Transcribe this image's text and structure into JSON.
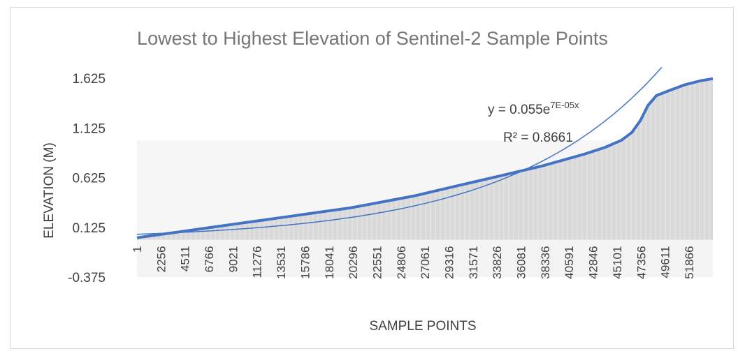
{
  "chart_data": {
    "type": "area",
    "title": "Lowest to Highest Elevation of Sentinel-2 Sample Points",
    "xlabel": "SAMPLE POINTS",
    "ylabel": "ELEVATION (M)",
    "ylim": [
      -0.375,
      1.625
    ],
    "yticks": [
      "1.625",
      "1.125",
      "0.625",
      "0.125",
      "-0.375"
    ],
    "ytick_values": [
      1.625,
      1.125,
      0.625,
      0.125,
      -0.375
    ],
    "xlim": [
      1,
      54100
    ],
    "xticks": [
      "1",
      "2256",
      "4511",
      "6766",
      "9021",
      "11276",
      "13531",
      "15786",
      "18041",
      "20296",
      "22551",
      "24806",
      "27061",
      "29316",
      "31571",
      "33826",
      "36081",
      "38336",
      "40591",
      "42846",
      "45101",
      "47356",
      "49611",
      "51866"
    ],
    "xtick_values": [
      1,
      2256,
      4511,
      6766,
      9021,
      11276,
      13531,
      15786,
      18041,
      20296,
      22551,
      24806,
      27061,
      29316,
      31571,
      33826,
      36081,
      38336,
      40591,
      42846,
      45101,
      47356,
      49611,
      51866
    ],
    "grid": false,
    "series": [
      {
        "x": [
          1,
          2000,
          4000,
          6000,
          8000,
          10000,
          12000,
          14000,
          16000,
          18000,
          20000,
          22000,
          24000,
          26000,
          28000,
          30000,
          32000,
          34000,
          36000,
          38000,
          40000,
          42000,
          44000,
          45500,
          46500,
          47300,
          48000,
          48800,
          50000,
          51500,
          53000,
          54100
        ],
        "y": [
          0.02,
          0.05,
          0.08,
          0.11,
          0.14,
          0.17,
          0.2,
          0.23,
          0.26,
          0.29,
          0.32,
          0.36,
          0.4,
          0.44,
          0.49,
          0.54,
          0.59,
          0.64,
          0.69,
          0.74,
          0.8,
          0.86,
          0.93,
          1.0,
          1.08,
          1.2,
          1.35,
          1.45,
          1.5,
          1.56,
          1.6,
          1.62
        ]
      }
    ],
    "trendline": {
      "type": "exponential",
      "a": 0.055,
      "b": 7e-05,
      "x_end": 49300,
      "equation_prefix": "y = 0.055e",
      "equation_exponent": "7E-05x",
      "r_squared_label": "R² = 0.8661"
    },
    "colors": {
      "area_fill": "#d9d9d9",
      "area_line": "#4472c4",
      "trendline": "#4472c4",
      "title": "#767676",
      "text": "#404040"
    }
  }
}
